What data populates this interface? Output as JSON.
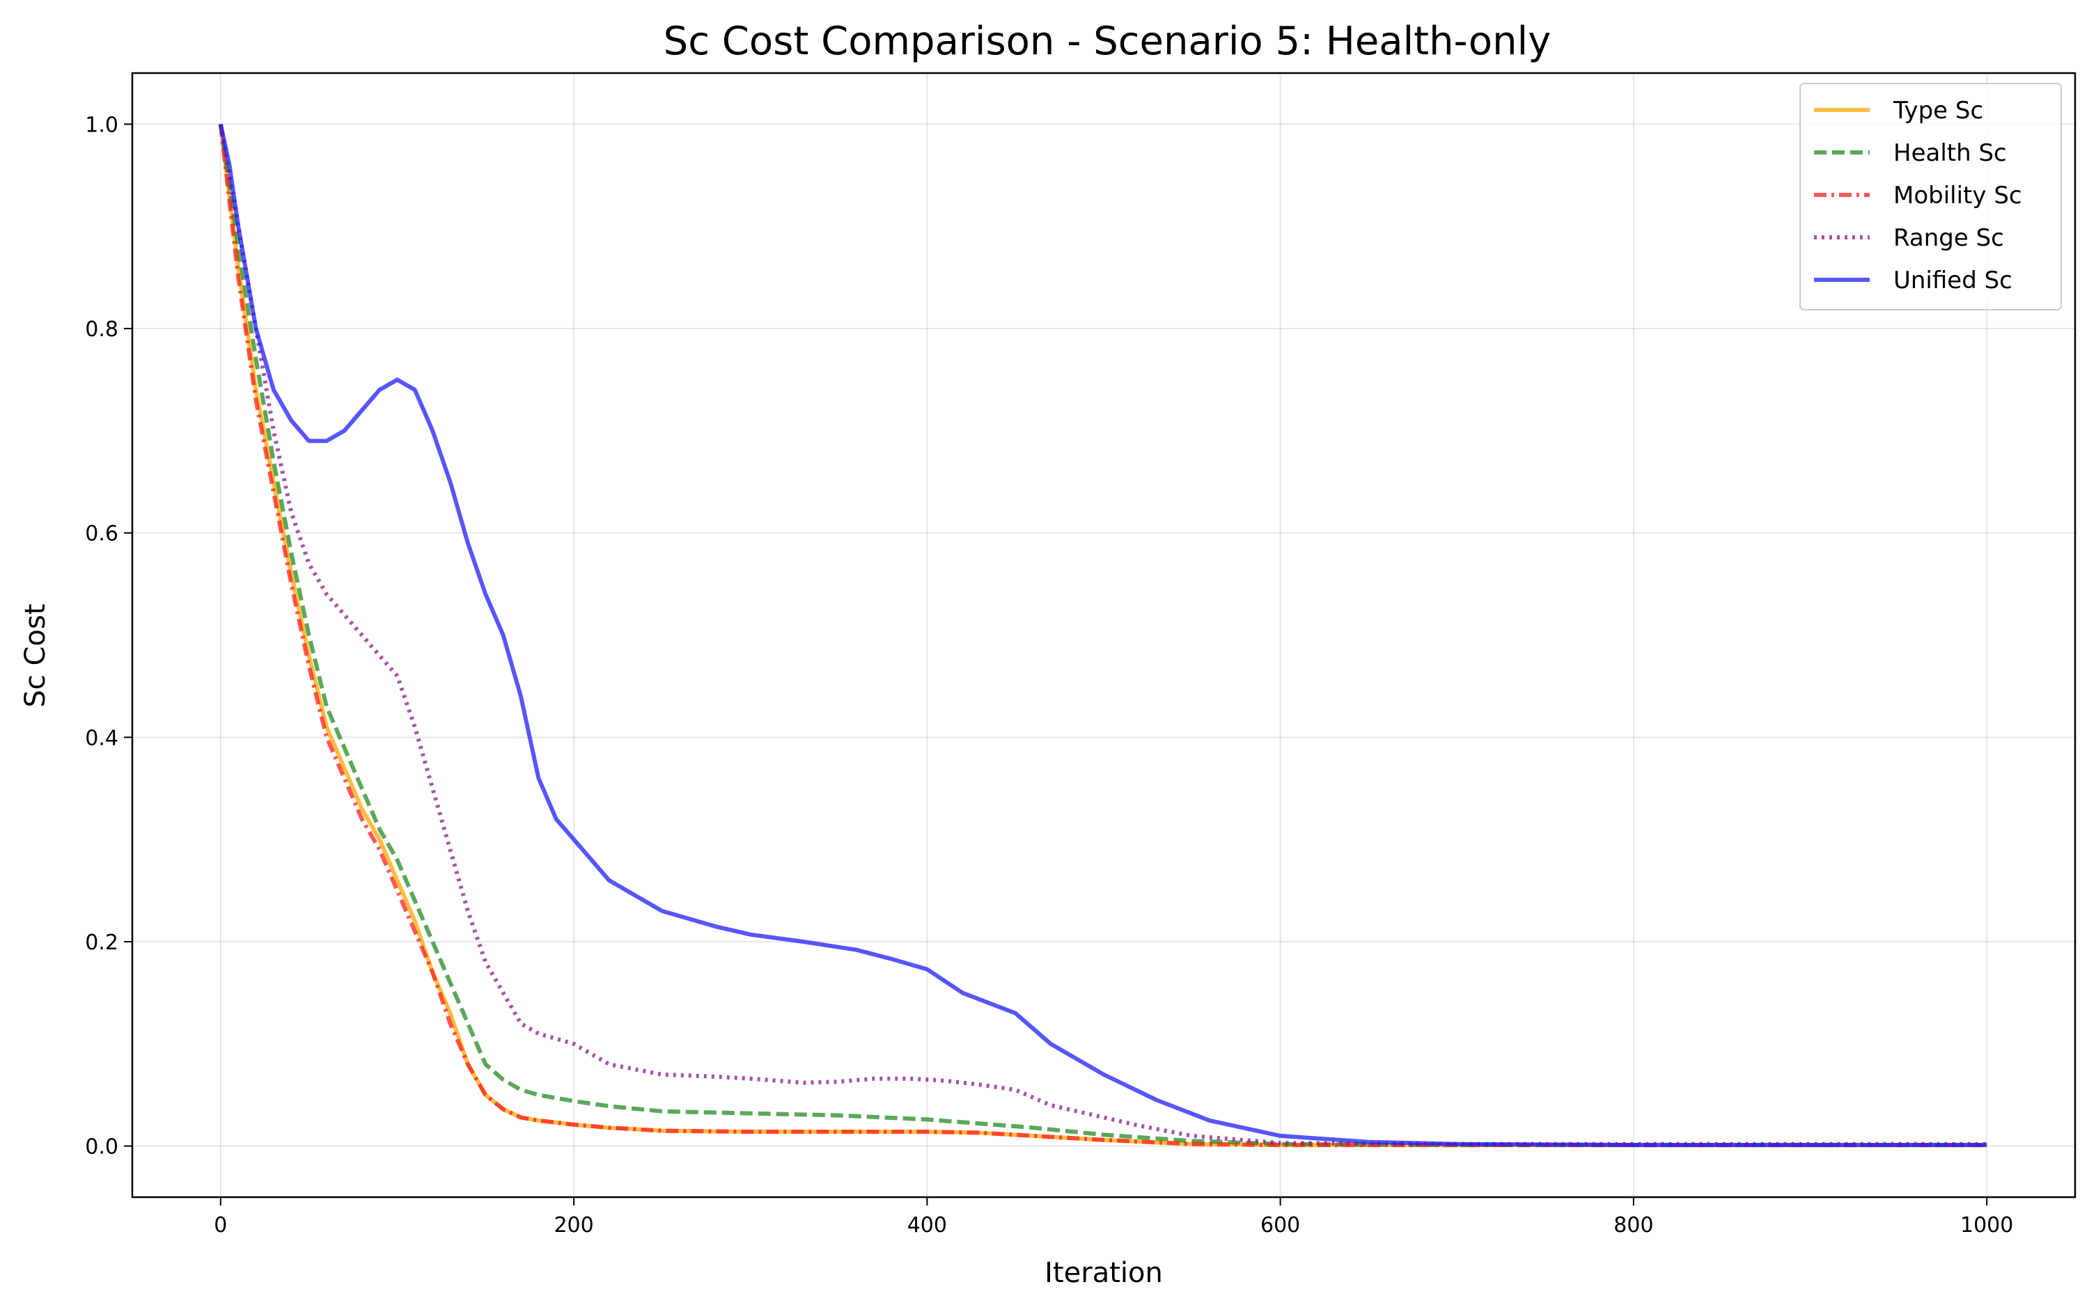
{
  "chart_data": {
    "type": "line",
    "title": "Sc Cost Comparison - Scenario 5: Health-only",
    "xlabel": "Iteration",
    "ylabel": "Sc Cost",
    "xlim": [
      -50,
      1050
    ],
    "ylim": [
      -0.05,
      1.05
    ],
    "xticks": [
      0,
      200,
      400,
      600,
      800,
      1000
    ],
    "yticks": [
      0.0,
      0.2,
      0.4,
      0.6,
      0.8,
      1.0
    ],
    "xtick_labels": [
      "0",
      "200",
      "400",
      "600",
      "800",
      "1000"
    ],
    "ytick_labels": [
      "0.0",
      "0.2",
      "0.4",
      "0.6",
      "0.8",
      "1.0"
    ],
    "grid": true,
    "legend_position": "top-right",
    "series": [
      {
        "name": "Type Sc",
        "color": "#FFA500",
        "style": "solid",
        "x": [
          0,
          10,
          20,
          30,
          40,
          50,
          60,
          70,
          80,
          90,
          100,
          110,
          120,
          130,
          140,
          150,
          160,
          170,
          180,
          200,
          220,
          250,
          300,
          350,
          400,
          430,
          460,
          500,
          550,
          600,
          700,
          800,
          900,
          1000
        ],
        "y": [
          1.0,
          0.86,
          0.74,
          0.65,
          0.56,
          0.48,
          0.41,
          0.37,
          0.33,
          0.3,
          0.26,
          0.22,
          0.17,
          0.13,
          0.08,
          0.05,
          0.036,
          0.028,
          0.025,
          0.021,
          0.018,
          0.015,
          0.014,
          0.014,
          0.014,
          0.013,
          0.01,
          0.006,
          0.002,
          0.001,
          0.001,
          0.001,
          0.001,
          0.001
        ]
      },
      {
        "name": "Health Sc",
        "color": "#228B22",
        "style": "dashed",
        "x": [
          0,
          10,
          20,
          30,
          40,
          50,
          60,
          70,
          80,
          90,
          100,
          110,
          120,
          130,
          140,
          150,
          160,
          170,
          180,
          200,
          220,
          250,
          300,
          350,
          400,
          430,
          460,
          500,
          550,
          600,
          700,
          800,
          900,
          1000
        ],
        "y": [
          1.0,
          0.88,
          0.77,
          0.67,
          0.58,
          0.5,
          0.43,
          0.39,
          0.35,
          0.31,
          0.28,
          0.24,
          0.2,
          0.16,
          0.12,
          0.08,
          0.065,
          0.055,
          0.05,
          0.044,
          0.039,
          0.034,
          0.032,
          0.03,
          0.026,
          0.022,
          0.018,
          0.011,
          0.005,
          0.002,
          0.001,
          0.001,
          0.001,
          0.001
        ]
      },
      {
        "name": "Mobility Sc",
        "color": "#FF2020",
        "style": "dashdot",
        "x": [
          0,
          10,
          20,
          30,
          40,
          50,
          60,
          70,
          80,
          90,
          100,
          110,
          120,
          130,
          140,
          150,
          160,
          170,
          180,
          200,
          220,
          250,
          300,
          350,
          400,
          430,
          460,
          500,
          550,
          600,
          700,
          800,
          900,
          1000
        ],
        "y": [
          1.0,
          0.85,
          0.73,
          0.64,
          0.55,
          0.47,
          0.4,
          0.36,
          0.32,
          0.29,
          0.25,
          0.21,
          0.17,
          0.12,
          0.08,
          0.05,
          0.036,
          0.028,
          0.025,
          0.021,
          0.018,
          0.015,
          0.014,
          0.014,
          0.014,
          0.013,
          0.01,
          0.006,
          0.002,
          0.001,
          0.001,
          0.001,
          0.001,
          0.001
        ]
      },
      {
        "name": "Range Sc",
        "color": "#8B1A89",
        "style": "dotted",
        "x": [
          0,
          10,
          20,
          30,
          40,
          50,
          60,
          70,
          80,
          90,
          100,
          110,
          120,
          130,
          140,
          150,
          160,
          170,
          180,
          200,
          220,
          250,
          280,
          300,
          330,
          350,
          370,
          390,
          410,
          430,
          450,
          470,
          500,
          520,
          550,
          600,
          700,
          800,
          900,
          1000
        ],
        "y": [
          1.0,
          0.9,
          0.8,
          0.7,
          0.62,
          0.57,
          0.54,
          0.52,
          0.5,
          0.48,
          0.46,
          0.41,
          0.35,
          0.29,
          0.23,
          0.18,
          0.15,
          0.12,
          0.11,
          0.1,
          0.08,
          0.07,
          0.068,
          0.066,
          0.062,
          0.063,
          0.066,
          0.066,
          0.064,
          0.06,
          0.055,
          0.04,
          0.028,
          0.02,
          0.01,
          0.003,
          0.002,
          0.002,
          0.002,
          0.002
        ]
      },
      {
        "name": "Unified Sc",
        "color": "#1E1EFF",
        "style": "solid",
        "x": [
          0,
          5,
          10,
          15,
          20,
          25,
          30,
          40,
          50,
          60,
          70,
          80,
          90,
          100,
          110,
          120,
          130,
          140,
          150,
          160,
          170,
          180,
          190,
          200,
          220,
          250,
          280,
          300,
          330,
          360,
          380,
          400,
          420,
          450,
          470,
          500,
          530,
          560,
          600,
          650,
          700,
          800,
          900,
          1000
        ],
        "y": [
          1.0,
          0.96,
          0.9,
          0.85,
          0.8,
          0.77,
          0.74,
          0.71,
          0.69,
          0.69,
          0.7,
          0.72,
          0.74,
          0.75,
          0.74,
          0.7,
          0.65,
          0.59,
          0.54,
          0.5,
          0.44,
          0.36,
          0.32,
          0.3,
          0.26,
          0.23,
          0.215,
          0.207,
          0.2,
          0.192,
          0.183,
          0.173,
          0.15,
          0.13,
          0.1,
          0.07,
          0.045,
          0.025,
          0.01,
          0.004,
          0.002,
          0.001,
          0.001,
          0.001
        ]
      }
    ]
  }
}
